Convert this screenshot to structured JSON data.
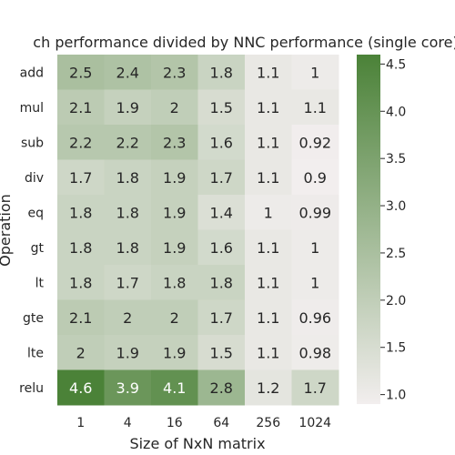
{
  "chart_data": {
    "type": "heatmap",
    "title": "ch performance divided by NNC performance (single core)",
    "xlabel": "Size of NxN matrix",
    "ylabel": "Operation",
    "x_categories": [
      "1",
      "4",
      "16",
      "64",
      "256",
      "1024"
    ],
    "y_categories": [
      "add",
      "mul",
      "sub",
      "div",
      "eq",
      "gt",
      "lt",
      "gte",
      "lte",
      "relu"
    ],
    "values": [
      [
        2.5,
        2.4,
        2.3,
        1.8,
        1.1,
        1
      ],
      [
        2.1,
        1.9,
        2,
        1.5,
        1.1,
        1.1
      ],
      [
        2.2,
        2.2,
        2.3,
        1.6,
        1.1,
        0.92
      ],
      [
        1.7,
        1.8,
        1.9,
        1.7,
        1.1,
        0.9
      ],
      [
        1.8,
        1.8,
        1.9,
        1.4,
        1,
        0.99
      ],
      [
        1.8,
        1.8,
        1.9,
        1.6,
        1.1,
        1
      ],
      [
        1.8,
        1.7,
        1.8,
        1.8,
        1.1,
        1
      ],
      [
        2.1,
        2,
        2,
        1.7,
        1.1,
        0.96
      ],
      [
        2,
        1.9,
        1.9,
        1.5,
        1.1,
        0.98
      ],
      [
        4.6,
        3.9,
        4.1,
        2.8,
        1.2,
        1.7
      ]
    ],
    "labels": [
      [
        "2.5",
        "2.4",
        "2.3",
        "1.8",
        "1.1",
        "1"
      ],
      [
        "2.1",
        "1.9",
        "2",
        "1.5",
        "1.1",
        "1.1"
      ],
      [
        "2.2",
        "2.2",
        "2.3",
        "1.6",
        "1.1",
        "0.92"
      ],
      [
        "1.7",
        "1.8",
        "1.9",
        "1.7",
        "1.1",
        "0.9"
      ],
      [
        "1.8",
        "1.8",
        "1.9",
        "1.4",
        "1",
        "0.99"
      ],
      [
        "1.8",
        "1.8",
        "1.9",
        "1.6",
        "1.1",
        "1"
      ],
      [
        "1.8",
        "1.7",
        "1.8",
        "1.8",
        "1.1",
        "1"
      ],
      [
        "2.1",
        "2",
        "2",
        "1.7",
        "1.1",
        "0.96"
      ],
      [
        "2",
        "1.9",
        "1.9",
        "1.5",
        "1.1",
        "0.98"
      ],
      [
        "4.6",
        "3.9",
        "4.1",
        "2.8",
        "1.2",
        "1.7"
      ]
    ],
    "colorbar": {
      "vmin": 0.9,
      "vmax": 4.6,
      "ticks": [
        1.0,
        1.5,
        2.0,
        2.5,
        3.0,
        3.5,
        4.0,
        4.5
      ],
      "tick_labels": [
        "1.0",
        "1.5",
        "2.0",
        "2.5",
        "3.0",
        "3.5",
        "4.0",
        "4.5"
      ],
      "color_low": "#f2eeee",
      "color_high": "#4b8238"
    },
    "grid": false,
    "legend": "colorbar-right"
  }
}
